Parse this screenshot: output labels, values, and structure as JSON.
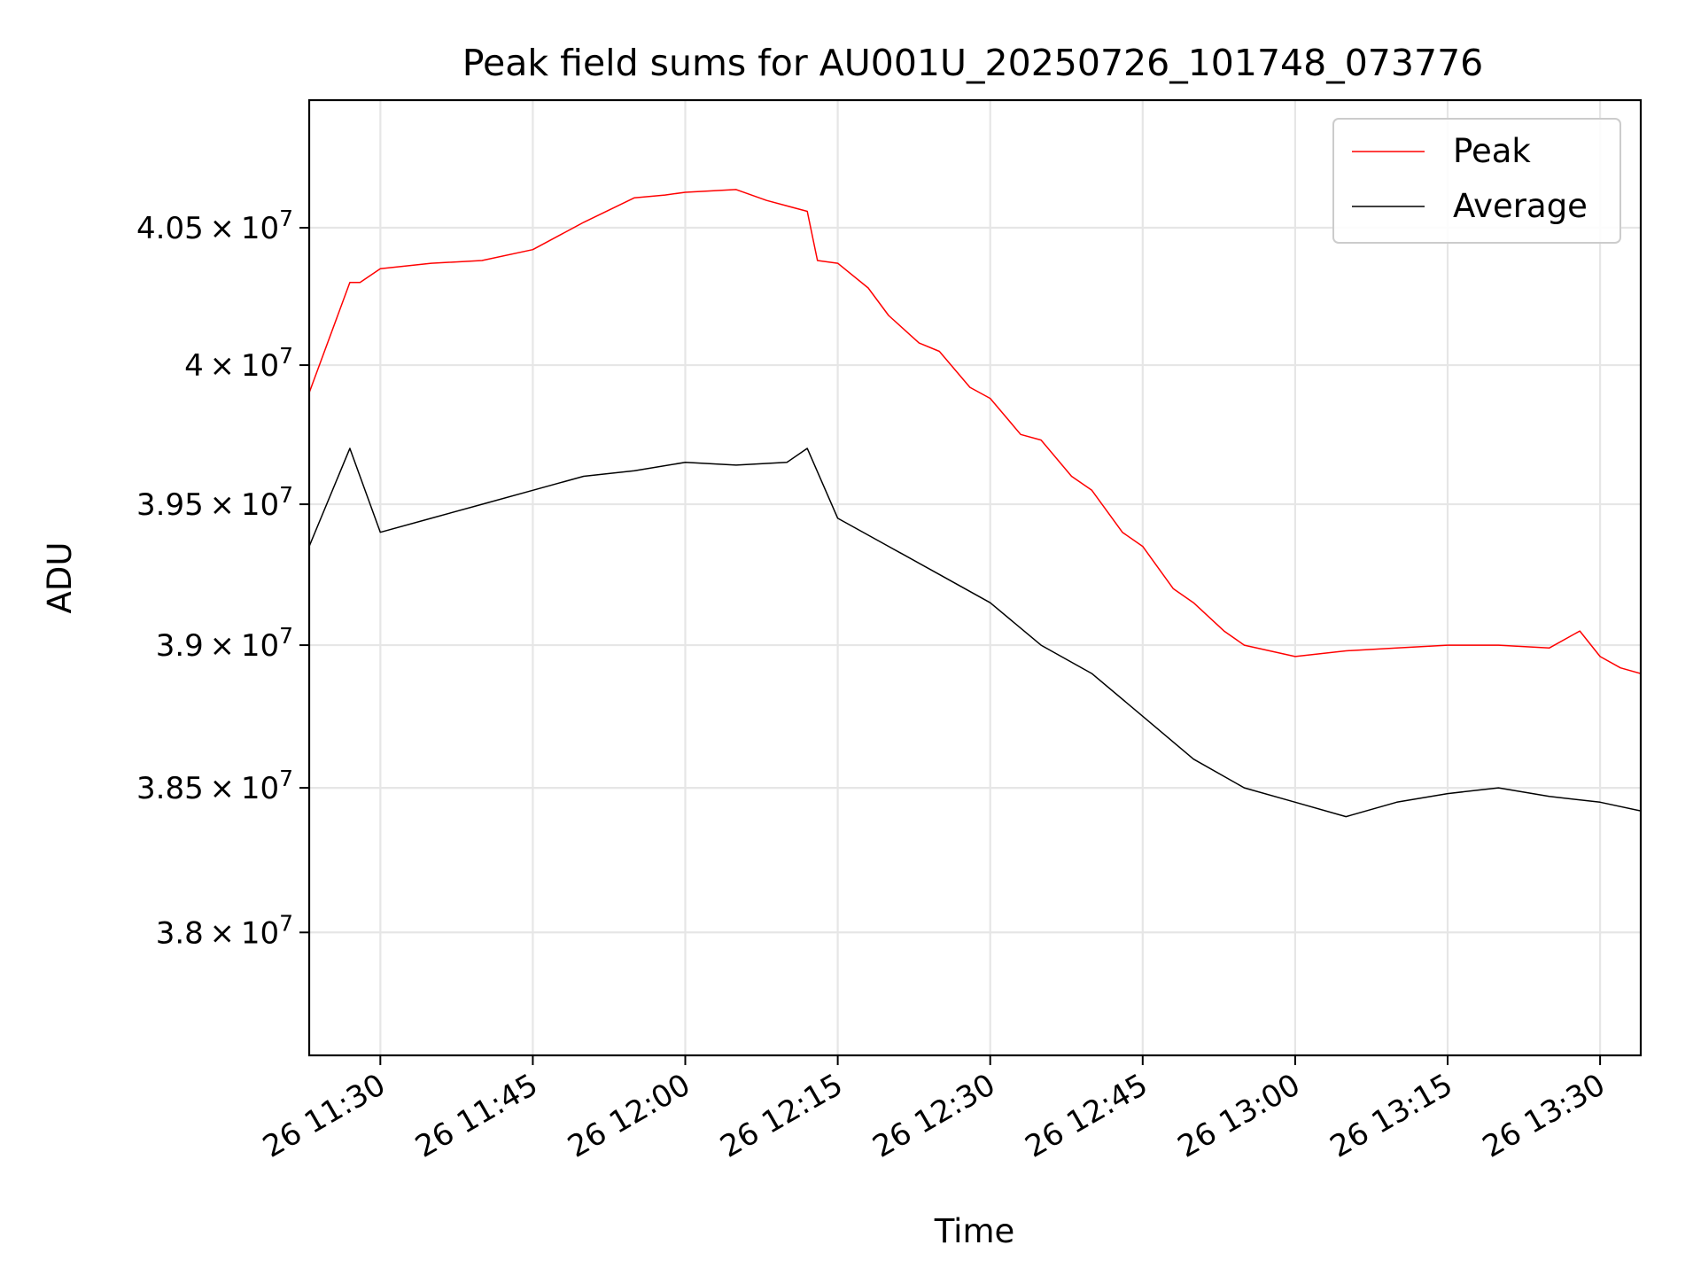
{
  "chart_data": {
    "type": "line",
    "title": "Peak field sums for AU001U_20250726_101748_073776",
    "xlabel": "Time",
    "ylabel": "ADU",
    "x_ticks": [
      "26 11:30",
      "26 11:45",
      "26 12:00",
      "26 12:15",
      "26 12:30",
      "26 12:45",
      "26 13:00",
      "26 13:15",
      "26 13:30"
    ],
    "y_ticks": [
      {
        "value": 38000000,
        "mantissa": "3.8",
        "exponent": "7"
      },
      {
        "value": 38500000,
        "mantissa": "3.85",
        "exponent": "7"
      },
      {
        "value": 39000000,
        "mantissa": "3.9",
        "exponent": "7"
      },
      {
        "value": 39500000,
        "mantissa": "3.95",
        "exponent": "7"
      },
      {
        "value": 40000000,
        "mantissa": "4",
        "exponent": "7"
      },
      {
        "value": 40500000,
        "mantissa": "4.05",
        "exponent": "7"
      }
    ],
    "xlim": [
      "11:23",
      "13:34"
    ],
    "ylim": [
      37580000,
      40970000
    ],
    "yscale": "log",
    "grid": true,
    "legend_position": "top-right",
    "series": [
      {
        "name": "Peak",
        "color": "#ff0000",
        "x": [
          "11:23",
          "11:27",
          "11:28",
          "11:30",
          "11:35",
          "11:40",
          "11:45",
          "11:50",
          "11:55",
          "11:58",
          "12:00",
          "12:05",
          "12:08",
          "12:12",
          "12:13",
          "12:15",
          "12:18",
          "12:20",
          "12:23",
          "12:25",
          "12:28",
          "12:30",
          "12:33",
          "12:35",
          "12:38",
          "12:40",
          "12:43",
          "12:45",
          "12:48",
          "12:50",
          "12:53",
          "12:55",
          "13:00",
          "13:05",
          "13:10",
          "13:15",
          "13:20",
          "13:25",
          "13:28",
          "13:30",
          "13:32",
          "13:34"
        ],
        "y": [
          39900000,
          40300000,
          40300000,
          40350000,
          40370000,
          40380000,
          40420000,
          40520000,
          40610000,
          40620000,
          40630000,
          40640000,
          40600000,
          40560000,
          40380000,
          40370000,
          40280000,
          40180000,
          40080000,
          40050000,
          39920000,
          39880000,
          39750000,
          39730000,
          39600000,
          39550000,
          39400000,
          39350000,
          39200000,
          39150000,
          39050000,
          39000000,
          38960000,
          38980000,
          38990000,
          39000000,
          39000000,
          38990000,
          39050000,
          38960000,
          38920000,
          38900000
        ]
      },
      {
        "name": "Average",
        "color": "#000000",
        "x": [
          "11:23",
          "11:27",
          "11:30",
          "11:35",
          "11:40",
          "11:45",
          "11:50",
          "11:55",
          "12:00",
          "12:05",
          "12:10",
          "12:12",
          "12:15",
          "12:20",
          "12:25",
          "12:30",
          "12:35",
          "12:40",
          "12:45",
          "12:50",
          "12:55",
          "13:00",
          "13:05",
          "13:10",
          "13:15",
          "13:20",
          "13:25",
          "13:30",
          "13:34"
        ],
        "y": [
          39350000,
          39700000,
          39400000,
          39450000,
          39500000,
          39550000,
          39600000,
          39620000,
          39650000,
          39640000,
          39650000,
          39700000,
          39450000,
          39350000,
          39250000,
          39150000,
          39000000,
          38900000,
          38750000,
          38600000,
          38500000,
          38450000,
          38400000,
          38450000,
          38480000,
          38500000,
          38470000,
          38450000,
          38420000
        ]
      }
    ]
  }
}
